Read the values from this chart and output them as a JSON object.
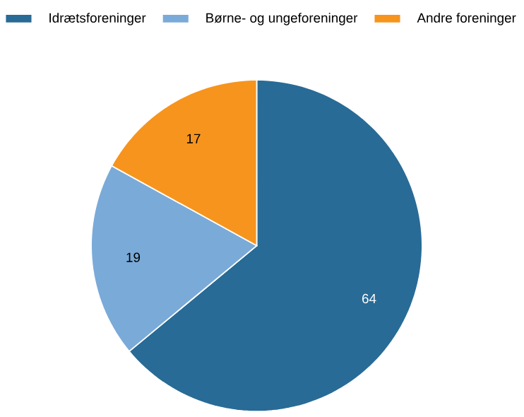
{
  "chart_data": {
    "type": "pie",
    "categories": [
      "Idrætsforeninger",
      "Børne- og ungeforeninger",
      "Andre foreninger"
    ],
    "values": [
      64,
      19,
      17
    ],
    "colors": [
      "#286b96",
      "#7aaad8",
      "#f7941d"
    ],
    "legend": "top",
    "data_labels": true
  }
}
